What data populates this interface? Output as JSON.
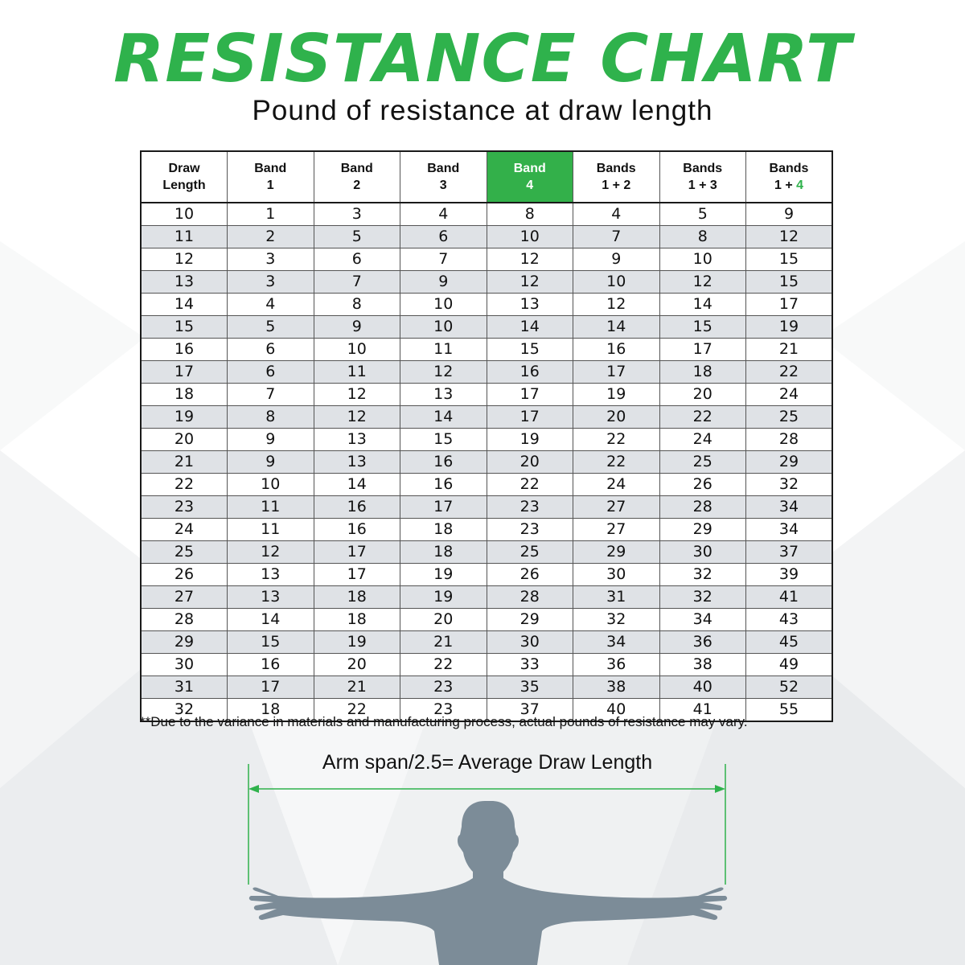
{
  "title": "RESISTANCE CHART",
  "subtitle": "Pound of resistance at draw length",
  "colors": {
    "accent": "#2fb24c",
    "header_highlight": "#33b04a",
    "row_alt": "#dfe2e6",
    "figure": "#7c8c98"
  },
  "chart_data": {
    "type": "table",
    "columns": [
      {
        "line1": "Draw",
        "line2": "Length"
      },
      {
        "line1": "Band",
        "line2": "1"
      },
      {
        "line1": "Band",
        "line2": "2"
      },
      {
        "line1": "Band",
        "line2": "3"
      },
      {
        "line1": "Band",
        "line2": "4",
        "highlight": true
      },
      {
        "line1": "Bands",
        "line2": "1 + 2"
      },
      {
        "line1": "Bands",
        "line2": "1 + 3"
      },
      {
        "line1": "Bands",
        "line2": "1 + ",
        "line2_accent": "4"
      }
    ],
    "rows": [
      [
        10,
        1,
        3,
        4,
        8,
        4,
        5,
        9
      ],
      [
        11,
        2,
        5,
        6,
        10,
        7,
        8,
        12
      ],
      [
        12,
        3,
        6,
        7,
        12,
        9,
        10,
        15
      ],
      [
        13,
        3,
        7,
        9,
        12,
        10,
        12,
        15
      ],
      [
        14,
        4,
        8,
        10,
        13,
        12,
        14,
        17
      ],
      [
        15,
        5,
        9,
        10,
        14,
        14,
        15,
        19
      ],
      [
        16,
        6,
        10,
        11,
        15,
        16,
        17,
        21
      ],
      [
        17,
        6,
        11,
        12,
        16,
        17,
        18,
        22
      ],
      [
        18,
        7,
        12,
        13,
        17,
        19,
        20,
        24
      ],
      [
        19,
        8,
        12,
        14,
        17,
        20,
        22,
        25
      ],
      [
        20,
        9,
        13,
        15,
        19,
        22,
        24,
        28
      ],
      [
        21,
        9,
        13,
        16,
        20,
        22,
        25,
        29
      ],
      [
        22,
        10,
        14,
        16,
        22,
        24,
        26,
        32
      ],
      [
        23,
        11,
        16,
        17,
        23,
        27,
        28,
        34
      ],
      [
        24,
        11,
        16,
        18,
        23,
        27,
        29,
        34
      ],
      [
        25,
        12,
        17,
        18,
        25,
        29,
        30,
        37
      ],
      [
        26,
        13,
        17,
        19,
        26,
        30,
        32,
        39
      ],
      [
        27,
        13,
        18,
        19,
        28,
        31,
        32,
        41
      ],
      [
        28,
        14,
        18,
        20,
        29,
        32,
        34,
        43
      ],
      [
        29,
        15,
        19,
        21,
        30,
        34,
        36,
        45
      ],
      [
        30,
        16,
        20,
        22,
        33,
        36,
        38,
        49
      ],
      [
        31,
        17,
        21,
        23,
        35,
        38,
        40,
        52
      ],
      [
        32,
        18,
        22,
        23,
        37,
        40,
        41,
        55
      ]
    ]
  },
  "footnote": "**Due to the variance in materials and manufacturing process, actual pounds of resistance may vary.",
  "arm_span": {
    "formula": "Arm span/2.5= Average Draw Length",
    "figure_icon": "person-silhouette-arms-outstretched-icon"
  }
}
